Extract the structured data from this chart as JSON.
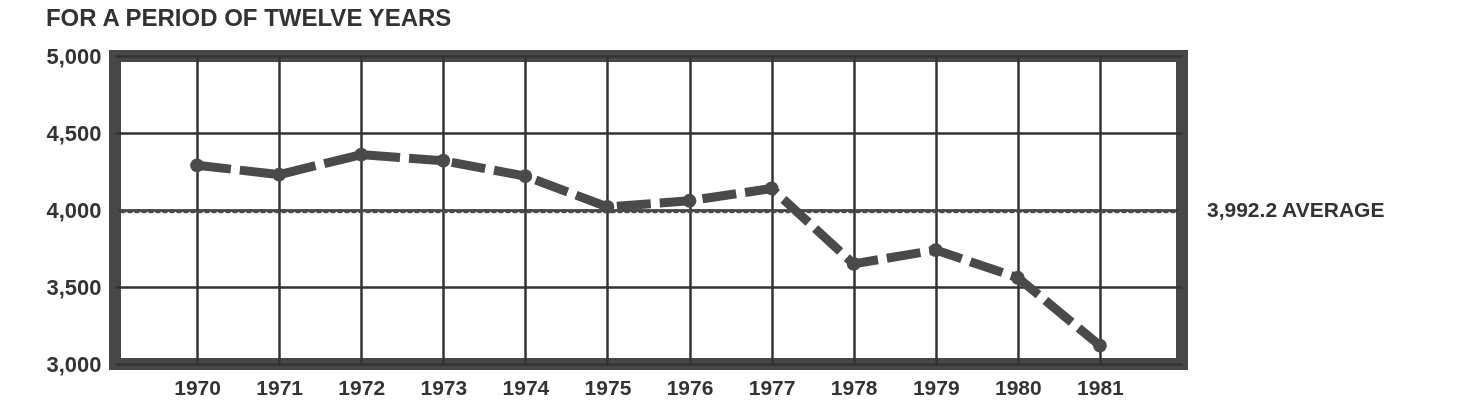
{
  "chart_data": {
    "type": "line",
    "title": "FOR A PERIOD OF TWELVE YEARS",
    "categories": [
      "1970",
      "1971",
      "1972",
      "1973",
      "1974",
      "1975",
      "1976",
      "1977",
      "1978",
      "1979",
      "1980",
      "1981"
    ],
    "series": [
      {
        "color": "#4a4a4a",
        "values": [
          4290,
          4230,
          4360,
          4320,
          4220,
          4020,
          4060,
          4140,
          3650,
          3740,
          3560,
          3120
        ]
      }
    ],
    "ylim": [
      3000,
      5000
    ],
    "yticks": [
      {
        "value": 3000,
        "label": "3,000"
      },
      {
        "value": 3500,
        "label": "3,500"
      },
      {
        "value": 4000,
        "label": "4,000"
      },
      {
        "value": 4500,
        "label": "4,500"
      },
      {
        "value": 5000,
        "label": "5,000"
      }
    ],
    "ref_lines": [
      {
        "axis": "y",
        "value": 3992.2,
        "label": "3,992.2 AVERAGE",
        "line_style": "dotted",
        "color": "#4a4a4a"
      }
    ],
    "grid": true,
    "marker": "circle",
    "line_style": "dashed"
  }
}
